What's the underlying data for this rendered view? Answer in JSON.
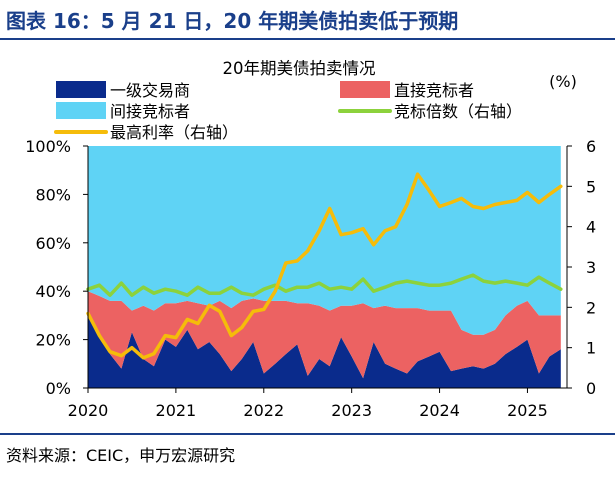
{
  "header": {
    "title": "图表 16：5 月 21 日，20 年期美债拍卖低于预期"
  },
  "footer": {
    "source": "资料来源：CEIC，申万宏源研究"
  },
  "colors": {
    "primary_dealers": "#0a2b8c",
    "direct_bidders": "#ec6262",
    "indirect_bidders": "#5fd3f5",
    "bid_to_cover": "#8cd23c",
    "high_yield": "#f5bc0a",
    "header_blue": "#1a3f8a"
  },
  "chart_data": {
    "type": "area",
    "title": "20年期美债拍卖情况",
    "right_axis_unit": "(%)",
    "legend_placement": "top",
    "x_ticks": [
      "2020",
      "2021",
      "2022",
      "2023",
      "2024",
      "2025"
    ],
    "x_range": [
      2020.0,
      2025.45
    ],
    "y_left": {
      "range": [
        0,
        100
      ],
      "ticks": [
        "0%",
        "20%",
        "40%",
        "60%",
        "80%",
        "100%"
      ]
    },
    "y_right": {
      "range": [
        0,
        6
      ],
      "ticks": [
        "0",
        "1",
        "2",
        "3",
        "4",
        "5",
        "6"
      ]
    },
    "grid": false,
    "x": [
      2020.0,
      2020.13,
      2020.25,
      2020.38,
      2020.5,
      2020.63,
      2020.75,
      2020.88,
      2021.0,
      2021.13,
      2021.25,
      2021.38,
      2021.5,
      2021.63,
      2021.75,
      2021.88,
      2022.0,
      2022.13,
      2022.25,
      2022.38,
      2022.5,
      2022.63,
      2022.75,
      2022.88,
      2023.0,
      2023.13,
      2023.25,
      2023.38,
      2023.5,
      2023.63,
      2023.75,
      2023.88,
      2024.0,
      2024.13,
      2024.25,
      2024.38,
      2024.5,
      2024.63,
      2024.75,
      2024.88,
      2025.0,
      2025.13,
      2025.25,
      2025.38
    ],
    "series": [
      {
        "name": "一级交易商",
        "axis": "left",
        "type": "stacked-area",
        "values": [
          30,
          21,
          14,
          8,
          23,
          12,
          9,
          20,
          17,
          24,
          16,
          19,
          14,
          7,
          12,
          19,
          6,
          10,
          14,
          18,
          5,
          12,
          9,
          21,
          13,
          4,
          19,
          10,
          8,
          6,
          11,
          13,
          15,
          7,
          8,
          9,
          8,
          10,
          14,
          17,
          20,
          6,
          13,
          16
        ]
      },
      {
        "name": "直接竞标者",
        "axis": "left",
        "type": "stacked-area",
        "values": [
          10,
          17,
          22,
          28,
          9,
          22,
          23,
          15,
          18,
          12,
          19,
          15,
          22,
          26,
          24,
          18,
          30,
          26,
          22,
          17,
          30,
          22,
          23,
          13,
          21,
          31,
          14,
          24,
          25,
          27,
          22,
          19,
          17,
          25,
          16,
          13,
          14,
          14,
          16,
          17,
          16,
          24,
          17,
          14
        ]
      },
      {
        "name": "间接竞标者",
        "axis": "left",
        "type": "stacked-area",
        "values": [
          60,
          62,
          64,
          64,
          68,
          66,
          68,
          65,
          65,
          64,
          65,
          66,
          64,
          67,
          64,
          63,
          64,
          64,
          64,
          65,
          65,
          66,
          68,
          66,
          66,
          65,
          67,
          66,
          67,
          67,
          67,
          68,
          68,
          68,
          76,
          78,
          78,
          76,
          70,
          66,
          64,
          70,
          70,
          70
        ]
      },
      {
        "name": "竞标倍数（右轴）",
        "axis": "right",
        "type": "line",
        "values": [
          2.45,
          2.55,
          2.3,
          2.6,
          2.3,
          2.5,
          2.35,
          2.45,
          2.4,
          2.3,
          2.5,
          2.35,
          2.35,
          2.5,
          2.35,
          2.3,
          2.45,
          2.55,
          2.4,
          2.5,
          2.5,
          2.6,
          2.45,
          2.5,
          2.45,
          2.7,
          2.4,
          2.5,
          2.6,
          2.65,
          2.6,
          2.55,
          2.55,
          2.6,
          2.7,
          2.8,
          2.65,
          2.6,
          2.65,
          2.6,
          2.55,
          2.75,
          2.6,
          2.45
        ]
      },
      {
        "name": "最高利率（右轴）",
        "axis": "right",
        "type": "line",
        "values": [
          1.85,
          1.3,
          0.9,
          0.8,
          1.0,
          0.75,
          0.85,
          1.3,
          1.25,
          1.7,
          1.6,
          2.05,
          1.9,
          1.3,
          1.5,
          1.9,
          1.95,
          2.4,
          3.1,
          3.15,
          3.4,
          3.9,
          4.45,
          3.8,
          3.85,
          3.95,
          3.55,
          3.9,
          4.0,
          4.55,
          5.3,
          4.9,
          4.5,
          4.6,
          4.7,
          4.5,
          4.45,
          4.55,
          4.6,
          4.65,
          4.85,
          4.6,
          4.8,
          5.0
        ]
      }
    ]
  }
}
